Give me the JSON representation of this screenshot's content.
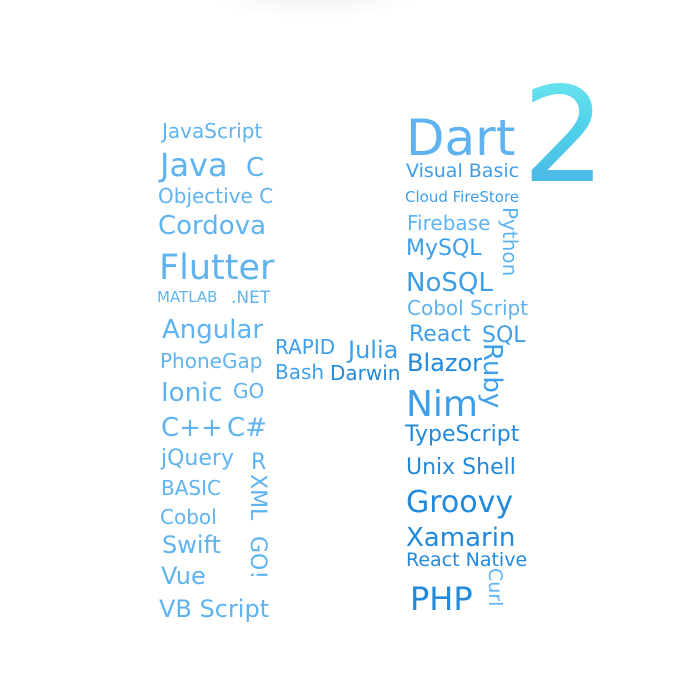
{
  "badge": {
    "digit": "2"
  },
  "words": {
    "javascript": "JavaScript",
    "java": "Java",
    "c": "C",
    "objective_c": "Objective C",
    "cordova": "Cordova",
    "flutter": "Flutter",
    "matlab": "MATLAB",
    "dotnet": ".NET",
    "angular": "Angular",
    "phonegap": "PhoneGap",
    "ionic": "Ionic",
    "go": "GO",
    "cpp": "C++",
    "csharp": "C#",
    "jquery": "jQuery",
    "r": "R",
    "basic": "BASIC",
    "xml": "XML",
    "cobol": "Cobol",
    "swift": "Swift",
    "gol": "GO!",
    "vue": "Vue",
    "vbscript": "VB Script",
    "rapid": "RAPID",
    "bash": "Bash",
    "julia": "Julia",
    "darwin": "Darwin",
    "dart": "Dart",
    "visual_basic": "Visual Basic",
    "cloud_firestore": "Cloud FireStore",
    "firebase": "Firebase",
    "python": "Python",
    "mysql": "MySQL",
    "nosql": "NoSQL",
    "cobol_script": "Cobol Script",
    "react": "React",
    "sql": "SQL",
    "blazor": "Blazor",
    "ruby": "Ruby",
    "nim": "Nim",
    "typescript": "TypeScript",
    "unix_shell": "Unix Shell",
    "groovy": "Groovy",
    "xamarin": "Xamarin",
    "react_native": "React Native",
    "curl": "Curl",
    "php": "PHP"
  },
  "colors": {
    "light": "#5fb3ef",
    "medium": "#3e9fe8",
    "dark": "#2389db",
    "digit_top": "#6ee6ef",
    "digit_bottom": "#4ab0e4"
  }
}
